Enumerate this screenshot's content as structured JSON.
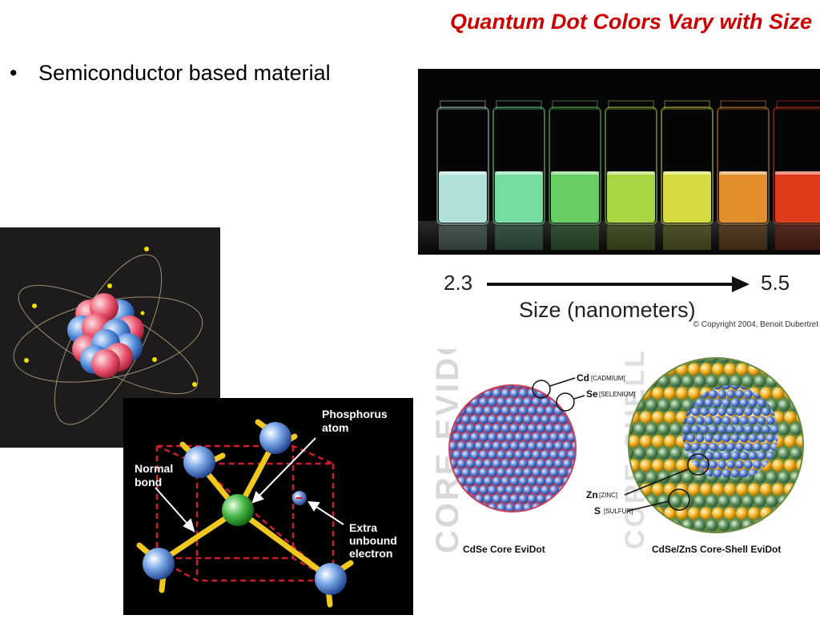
{
  "slide": {
    "title": "Quantum Dot Colors Vary with Size",
    "bullet_char": "•",
    "bullets": [
      "Semiconductor based material"
    ]
  },
  "vials": {
    "colors": [
      "#bff4ee",
      "#7ff0b0",
      "#6fe06a",
      "#b8e84a",
      "#e8ee44",
      "#f59a30",
      "#f0401c"
    ]
  },
  "scale": {
    "min": "2.3",
    "max": "5.5",
    "label": "Size (nanometers)",
    "copyright": "© Copyright 2004, Benoit Dubertret"
  },
  "lattice": {
    "phosphorus_label_1": "Phosphorus",
    "phosphorus_label_2": "atom",
    "normal_label_1": "Normal",
    "normal_label_2": "bond",
    "extra_label_1": "Extra",
    "extra_label_2": "unbound",
    "extra_label_3": "electron"
  },
  "evidot": {
    "core_watermark": "CORE EVIDOT",
    "shell_watermark": "CORE-SHELL EVIDOT",
    "cd_symbol": "Cd",
    "cd_name": "[CADMIUM]",
    "se_symbol": "Se",
    "se_name": "[SELENIUM]",
    "zn_symbol": "Zn",
    "zn_name": "[ZINC]",
    "s_symbol": "S",
    "s_name": "[SULFUR]",
    "core_caption": "CdSe Core EviDot",
    "shell_caption": "CdSe/ZnS Core-Shell EviDot"
  }
}
